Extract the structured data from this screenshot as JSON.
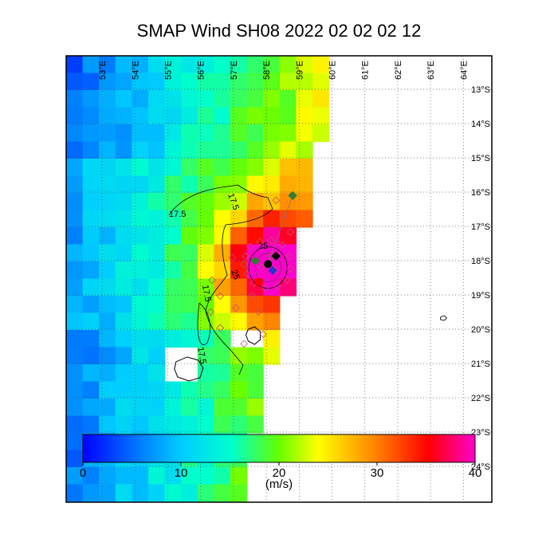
{
  "title": "SMAP Wind  SH08  2022 02 02 02 12",
  "map": {
    "lon_range": [
      52,
      64
    ],
    "lat_range": [
      -13,
      -24.5
    ],
    "lon_labels": [
      "53°E",
      "54°E",
      "55°E",
      "56°E",
      "57°E",
      "58°E",
      "59°E",
      "60°E",
      "61°E",
      "62°E",
      "63°E",
      "64°E"
    ],
    "lat_labels": [
      "13°S",
      "14°S",
      "15°S",
      "16°S",
      "17°S",
      "18°S",
      "19°S",
      "20°S",
      "21°S",
      "22°S",
      "23°S",
      "24°S"
    ],
    "contour_labels": [
      "17.5",
      "17.5",
      "17.5",
      "17.5",
      "25",
      "25"
    ],
    "storm_center": {
      "lon": 58.1,
      "lat": -18.1
    }
  },
  "colorbar": {
    "min": 0,
    "max": 40,
    "tick_labels": [
      "0",
      "10",
      "20",
      "30",
      "40"
    ],
    "units": "(m/s)",
    "colors": [
      "#0000ff",
      "#00aaff",
      "#00ffff",
      "#00ff80",
      "#ffff00",
      "#ff8000",
      "#ff0000",
      "#ff00ff"
    ]
  }
}
